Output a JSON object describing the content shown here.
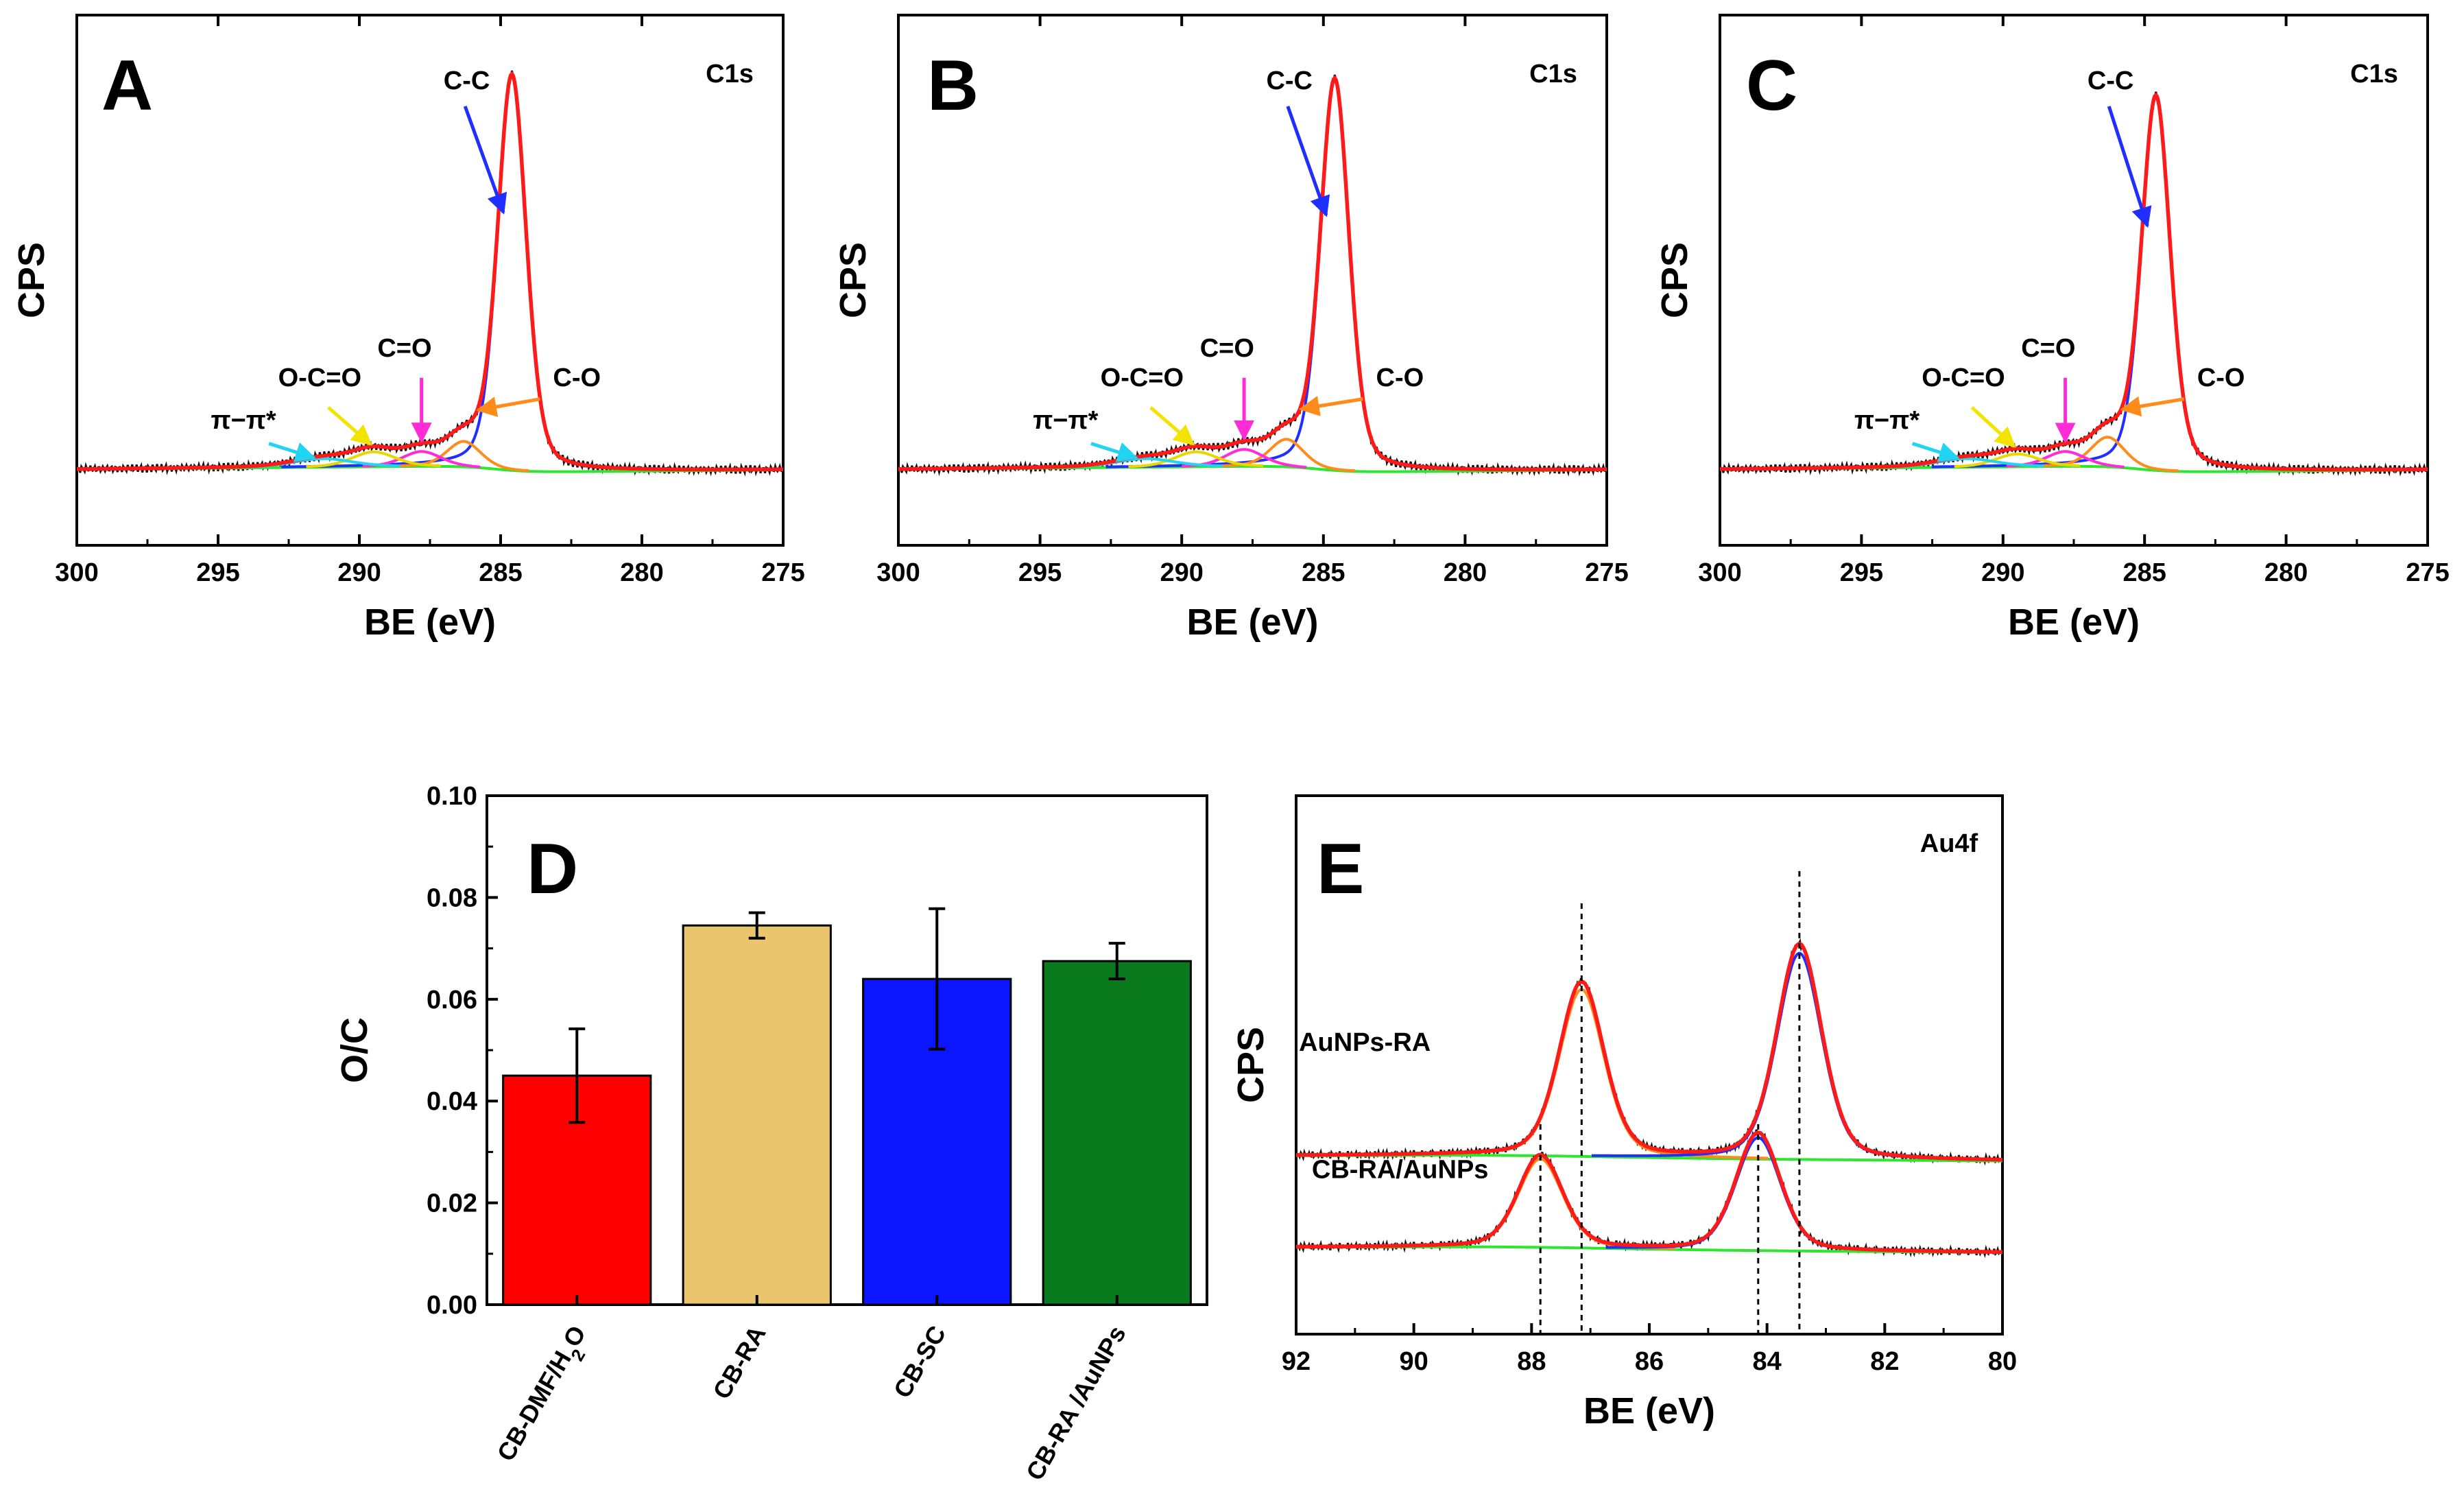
{
  "figure": {
    "colors": {
      "envelope": "#ff1a1a",
      "raw": "#111111",
      "cc": "#1f2fff",
      "co": "#ff8c1a",
      "ceqo": "#ff2bd6",
      "ocoo": "#e8d800",
      "pipi": "#22d3f2",
      "baseline": "#2ee62e",
      "bar_red": "#ff0000",
      "bar_tan": "#ebc46e",
      "bar_blue": "#0b16ff",
      "bar_green": "#0a7a1e",
      "arrow_cc": "#1f2fff",
      "arrow_co": "#ff8c1a",
      "arrow_ceqo": "#ff2bd6",
      "arrow_ocoo": "#f2e300",
      "arrow_pipi": "#22d3f2"
    }
  },
  "chart_data": [
    {
      "panel": "A",
      "type": "line",
      "title": "C1s",
      "xlabel": "BE (eV)",
      "ylabel": "CPS",
      "xlim": [
        300,
        275
      ],
      "xticks": [
        300,
        295,
        290,
        285,
        280,
        275
      ],
      "peak_labels": [
        "C-C",
        "C-O",
        "C=O",
        "O-C=O",
        "π−π*"
      ],
      "components": [
        {
          "name": "C-C",
          "center": 284.6,
          "fwhm": 1.2,
          "height": 0.93
        },
        {
          "name": "C-O",
          "center": 286.3,
          "fwhm": 1.4,
          "height": 0.06
        },
        {
          "name": "C=O",
          "center": 287.8,
          "fwhm": 1.6,
          "height": 0.035
        },
        {
          "name": "O-C=O",
          "center": 289.5,
          "fwhm": 1.8,
          "height": 0.035
        },
        {
          "name": "π−π*",
          "center": 291.3,
          "fwhm": 2.5,
          "height": 0.02
        }
      ]
    },
    {
      "panel": "B",
      "type": "line",
      "title": "C1s",
      "xlabel": "BE (eV)",
      "ylabel": "CPS",
      "xlim": [
        300,
        275
      ],
      "xticks": [
        300,
        295,
        290,
        285,
        280,
        275
      ],
      "peak_labels": [
        "C-C",
        "C-O",
        "C=O",
        "O-C=O",
        "π−π*"
      ],
      "components": [
        {
          "name": "C-C",
          "center": 284.6,
          "fwhm": 1.2,
          "height": 0.92
        },
        {
          "name": "C-O",
          "center": 286.3,
          "fwhm": 1.4,
          "height": 0.065
        },
        {
          "name": "C=O",
          "center": 287.8,
          "fwhm": 1.6,
          "height": 0.04
        },
        {
          "name": "O-C=O",
          "center": 289.5,
          "fwhm": 1.8,
          "height": 0.035
        },
        {
          "name": "π−π*",
          "center": 291.3,
          "fwhm": 2.5,
          "height": 0.02
        }
      ]
    },
    {
      "panel": "C",
      "type": "line",
      "title": "C1s",
      "xlabel": "BE (eV)",
      "ylabel": "CPS",
      "xlim": [
        300,
        275
      ],
      "xticks": [
        300,
        295,
        290,
        285,
        280,
        275
      ],
      "peak_labels": [
        "C-C",
        "C-O",
        "C=O",
        "O-C=O",
        "π−π*"
      ],
      "components": [
        {
          "name": "C-C",
          "center": 284.6,
          "fwhm": 1.2,
          "height": 0.88
        },
        {
          "name": "C-O",
          "center": 286.3,
          "fwhm": 1.4,
          "height": 0.07
        },
        {
          "name": "C=O",
          "center": 287.8,
          "fwhm": 1.6,
          "height": 0.035
        },
        {
          "name": "O-C=O",
          "center": 289.5,
          "fwhm": 1.8,
          "height": 0.03
        },
        {
          "name": "π−π*",
          "center": 291.3,
          "fwhm": 2.5,
          "height": 0.02
        }
      ]
    },
    {
      "panel": "D",
      "type": "bar",
      "xlabel": "",
      "ylabel": "O/C",
      "ylim": [
        0,
        0.1
      ],
      "yticks": [
        "0.00",
        "0.02",
        "0.04",
        "0.06",
        "0.08",
        "0.10"
      ],
      "categories": [
        "CB-DMF/H2O",
        "CB-RA",
        "CB-SC",
        "CB-RA /AuNPs"
      ],
      "values": [
        0.045,
        0.0745,
        0.064,
        0.0675
      ],
      "errors": [
        0.0092,
        0.0025,
        0.0138,
        0.0035
      ]
    },
    {
      "panel": "E",
      "type": "line",
      "title": "Au4f",
      "xlabel": "BE (eV)",
      "ylabel": "CPS",
      "xlim": [
        92,
        80
      ],
      "xticks": [
        92,
        90,
        88,
        86,
        84,
        82,
        80
      ],
      "series": [
        {
          "name": "AuNPs-RA",
          "peaks": [
            {
              "center": 87.15,
              "height": 0.34
            },
            {
              "center": 83.45,
              "height": 0.42
            }
          ]
        },
        {
          "name": "CB-RA/AuNPs",
          "peaks": [
            {
              "center": 87.85,
              "height": 0.18
            },
            {
              "center": 84.15,
              "height": 0.23
            }
          ]
        }
      ],
      "reference_lines": [
        87.85,
        87.15,
        84.15,
        83.45
      ]
    }
  ]
}
